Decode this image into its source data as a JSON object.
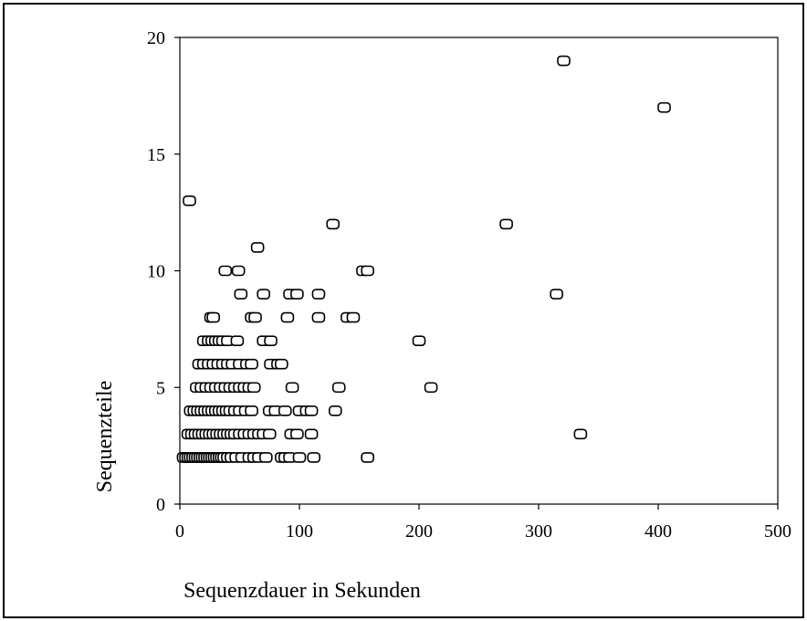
{
  "chart_data": {
    "type": "scatter",
    "title": "",
    "xlabel": "Sequenzdauer in Sekunden",
    "ylabel": "Sequenzteile",
    "xlim": [
      0,
      500
    ],
    "ylim": [
      0,
      20
    ],
    "xticks": [
      "0",
      "100",
      "200",
      "300",
      "400",
      "500"
    ],
    "yticks": [
      "0",
      "5",
      "10",
      "15",
      "20"
    ],
    "grid": false,
    "legend": "none",
    "marker": "rounded-square-outline",
    "marker_color": "#000000",
    "series": [
      {
        "points": [
          [
            321,
            19
          ],
          [
            405,
            17
          ],
          [
            8,
            13
          ],
          [
            128,
            12
          ],
          [
            273,
            12
          ],
          [
            65,
            11
          ],
          [
            38,
            10
          ],
          [
            49,
            10
          ],
          [
            153,
            10
          ],
          [
            157,
            10
          ],
          [
            51,
            9
          ],
          [
            70,
            9
          ],
          [
            92,
            9
          ],
          [
            98,
            9
          ],
          [
            116,
            9
          ],
          [
            315,
            9
          ],
          [
            26,
            8
          ],
          [
            28,
            8
          ],
          [
            60,
            8
          ],
          [
            63,
            8
          ],
          [
            90,
            8
          ],
          [
            116,
            8
          ],
          [
            140,
            8
          ],
          [
            145,
            8
          ],
          [
            20,
            7
          ],
          [
            24,
            7
          ],
          [
            27,
            7
          ],
          [
            30,
            7
          ],
          [
            33,
            7
          ],
          [
            36,
            7
          ],
          [
            40,
            7
          ],
          [
            48,
            7
          ],
          [
            70,
            7
          ],
          [
            76,
            7
          ],
          [
            200,
            7
          ],
          [
            16,
            6
          ],
          [
            20,
            6
          ],
          [
            24,
            6
          ],
          [
            28,
            6
          ],
          [
            32,
            6
          ],
          [
            36,
            6
          ],
          [
            40,
            6
          ],
          [
            44,
            6
          ],
          [
            50,
            6
          ],
          [
            56,
            6
          ],
          [
            60,
            6
          ],
          [
            76,
            6
          ],
          [
            82,
            6
          ],
          [
            85,
            6
          ],
          [
            14,
            5
          ],
          [
            18,
            5
          ],
          [
            22,
            5
          ],
          [
            26,
            5
          ],
          [
            30,
            5
          ],
          [
            34,
            5
          ],
          [
            38,
            5
          ],
          [
            42,
            5
          ],
          [
            46,
            5
          ],
          [
            50,
            5
          ],
          [
            54,
            5
          ],
          [
            58,
            5
          ],
          [
            62,
            5
          ],
          [
            94,
            5
          ],
          [
            133,
            5
          ],
          [
            210,
            5
          ],
          [
            9,
            4
          ],
          [
            12,
            4
          ],
          [
            15,
            4
          ],
          [
            18,
            4
          ],
          [
            21,
            4
          ],
          [
            24,
            4
          ],
          [
            27,
            4
          ],
          [
            30,
            4
          ],
          [
            33,
            4
          ],
          [
            36,
            4
          ],
          [
            39,
            4
          ],
          [
            42,
            4
          ],
          [
            46,
            4
          ],
          [
            50,
            4
          ],
          [
            55,
            4
          ],
          [
            60,
            4
          ],
          [
            75,
            4
          ],
          [
            80,
            4
          ],
          [
            88,
            4
          ],
          [
            100,
            4
          ],
          [
            106,
            4
          ],
          [
            110,
            4
          ],
          [
            130,
            4
          ],
          [
            7,
            3
          ],
          [
            10,
            3
          ],
          [
            13,
            3
          ],
          [
            16,
            3
          ],
          [
            19,
            3
          ],
          [
            22,
            3
          ],
          [
            25,
            3
          ],
          [
            28,
            3
          ],
          [
            31,
            3
          ],
          [
            34,
            3
          ],
          [
            37,
            3
          ],
          [
            40,
            3
          ],
          [
            43,
            3
          ],
          [
            46,
            3
          ],
          [
            50,
            3
          ],
          [
            54,
            3
          ],
          [
            58,
            3
          ],
          [
            62,
            3
          ],
          [
            66,
            3
          ],
          [
            70,
            3
          ],
          [
            75,
            3
          ],
          [
            93,
            3
          ],
          [
            98,
            3
          ],
          [
            110,
            3
          ],
          [
            335,
            3
          ],
          [
            3,
            2
          ],
          [
            5,
            2
          ],
          [
            7,
            2
          ],
          [
            9,
            2
          ],
          [
            11,
            2
          ],
          [
            13,
            2
          ],
          [
            15,
            2
          ],
          [
            17,
            2
          ],
          [
            19,
            2
          ],
          [
            21,
            2
          ],
          [
            23,
            2
          ],
          [
            25,
            2
          ],
          [
            27,
            2
          ],
          [
            29,
            2
          ],
          [
            31,
            2
          ],
          [
            33,
            2
          ],
          [
            35,
            2
          ],
          [
            37,
            2
          ],
          [
            40,
            2
          ],
          [
            43,
            2
          ],
          [
            47,
            2
          ],
          [
            52,
            2
          ],
          [
            58,
            2
          ],
          [
            62,
            2
          ],
          [
            66,
            2
          ],
          [
            72,
            2
          ],
          [
            85,
            2
          ],
          [
            88,
            2
          ],
          [
            92,
            2
          ],
          [
            100,
            2
          ],
          [
            112,
            2
          ],
          [
            157,
            2
          ]
        ]
      }
    ]
  }
}
